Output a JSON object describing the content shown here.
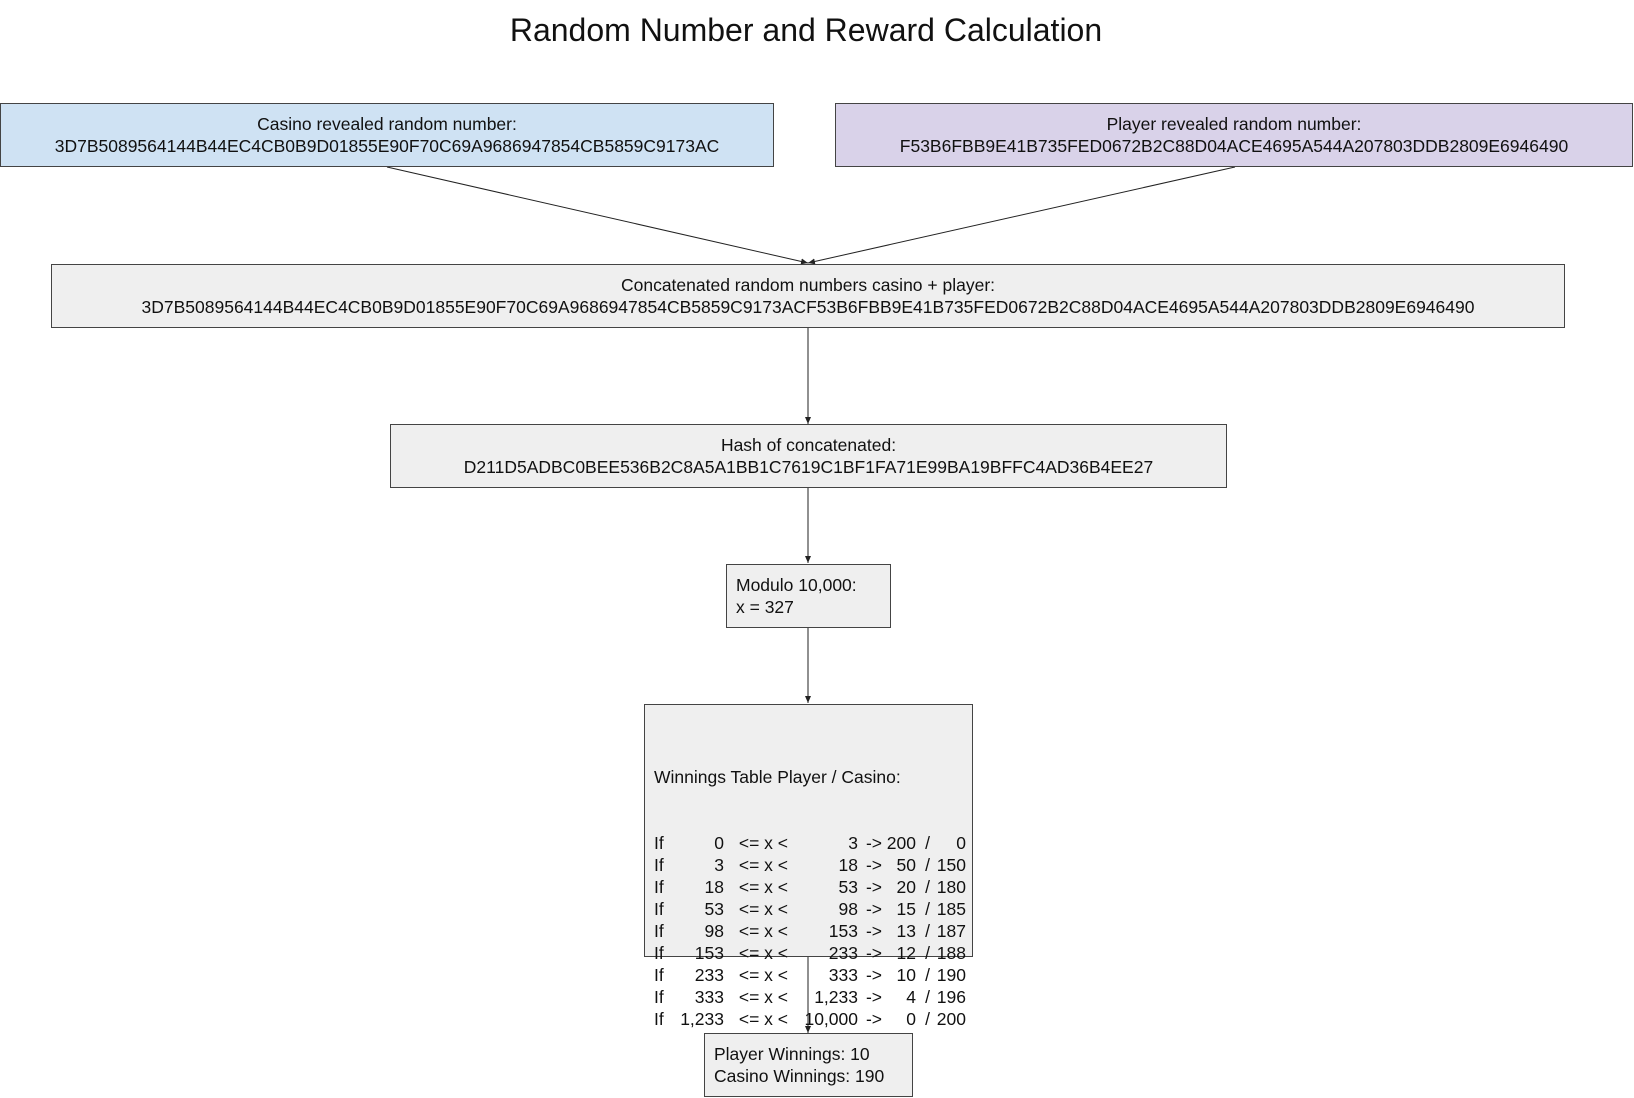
{
  "title": "Random Number and Reward Calculation",
  "colors": {
    "casino_fill": "#cfe2f3",
    "player_fill": "#d9d2e9",
    "step_fill": "#efefef",
    "stroke": "#444444"
  },
  "casino_box": {
    "label": "Casino revealed random number:",
    "value": "3D7B5089564144B44EC4CB0B9D01855E90F70C69A9686947854CB5859C9173AC"
  },
  "player_box": {
    "label": "Player revealed random number:",
    "value": "F53B6FBB9E41B735FED0672B2C88D04ACE4695A544A207803DDB2809E6946490"
  },
  "concat_box": {
    "label": "Concatenated random numbers casino + player:",
    "value": "3D7B5089564144B44EC4CB0B9D01855E90F70C69A9686947854CB5859C9173ACF53B6FBB9E41B735FED0672B2C88D04ACE4695A544A207803DDB2809E6946490"
  },
  "hash_box": {
    "label": "Hash of concatenated:",
    "value": "D211D5ADBC0BEE536B2C8A5A1BB1C7619C1BF1FA71E99BA19BFFC4AD36B4EE27"
  },
  "modulo_box": {
    "label": "Modulo 10,000:",
    "value": "x = 327"
  },
  "winnings_table": {
    "heading": "Winnings Table Player / Casino:",
    "rows": [
      {
        "prefix": "If",
        "lower": "0",
        "op": "<= x <",
        "upper": "3",
        "arrow": "->",
        "player": "200",
        "sep": "/",
        "casino": "0"
      },
      {
        "prefix": "If",
        "lower": "3",
        "op": "<= x <",
        "upper": "18",
        "arrow": "->",
        "player": "50",
        "sep": "/",
        "casino": "150"
      },
      {
        "prefix": "If",
        "lower": "18",
        "op": "<= x <",
        "upper": "53",
        "arrow": "->",
        "player": "20",
        "sep": "/",
        "casino": "180"
      },
      {
        "prefix": "If",
        "lower": "53",
        "op": "<= x <",
        "upper": "98",
        "arrow": "->",
        "player": "15",
        "sep": "/",
        "casino": "185"
      },
      {
        "prefix": "If",
        "lower": "98",
        "op": "<= x <",
        "upper": "153",
        "arrow": "->",
        "player": "13",
        "sep": "/",
        "casino": "187"
      },
      {
        "prefix": "If",
        "lower": "153",
        "op": "<= x <",
        "upper": "233",
        "arrow": "->",
        "player": "12",
        "sep": "/",
        "casino": "188"
      },
      {
        "prefix": "If",
        "lower": "233",
        "op": "<= x <",
        "upper": "333",
        "arrow": "->",
        "player": "10",
        "sep": "/",
        "casino": "190"
      },
      {
        "prefix": "If",
        "lower": "333",
        "op": "<= x <",
        "upper": "1,233",
        "arrow": "->",
        "player": "4",
        "sep": "/",
        "casino": "196"
      },
      {
        "prefix": "If",
        "lower": "1,233",
        "op": "<= x <",
        "upper": "10,000",
        "arrow": "->",
        "player": "0",
        "sep": "/",
        "casino": "200"
      }
    ]
  },
  "result_box": {
    "player_line": "Player Winnings: 10",
    "casino_line": "Casino Winnings: 190"
  }
}
